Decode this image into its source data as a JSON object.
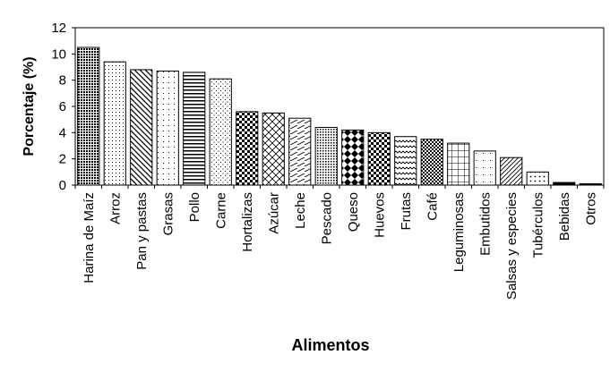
{
  "chart_data": {
    "type": "bar",
    "title": "",
    "xlabel": "Alimentos",
    "ylabel": "Porcentaje (%)",
    "ylim": [
      0,
      12
    ],
    "yticks": [
      0,
      2,
      4,
      6,
      8,
      10,
      12
    ],
    "grid": false,
    "categories": [
      "Harina de Maíz",
      "Arroz",
      "Pan y pastas",
      "Grasas",
      "Pollo",
      "Carne",
      "Hortalizas",
      "Azúcar",
      "Leche",
      "Pescado",
      "Queso",
      "Huevos",
      "Frutas",
      "Café",
      "Leguminosas",
      "Embutidos",
      "Salsas y especies",
      "Tubérculos",
      "Bebidas",
      "Otros"
    ],
    "values": [
      10.5,
      9.4,
      8.8,
      8.7,
      8.6,
      8.1,
      5.6,
      5.5,
      5.1,
      4.4,
      4.2,
      4.0,
      3.7,
      3.5,
      3.2,
      2.6,
      2.1,
      1.0,
      0.2,
      0.1
    ],
    "patterns": [
      "dense-dots",
      "fine-dots",
      "back-diagonal",
      "sparse-dots",
      "horizontal-lines",
      "small-dots",
      "checker",
      "diamond-grid",
      "diagonal-dash",
      "dense-dots-small",
      "diamond-checker",
      "checker-large",
      "zigzag",
      "checker-dense",
      "grid",
      "sparse-dots-large",
      "forward-diagonal",
      "dots-medium",
      "solid",
      "solid"
    ]
  }
}
